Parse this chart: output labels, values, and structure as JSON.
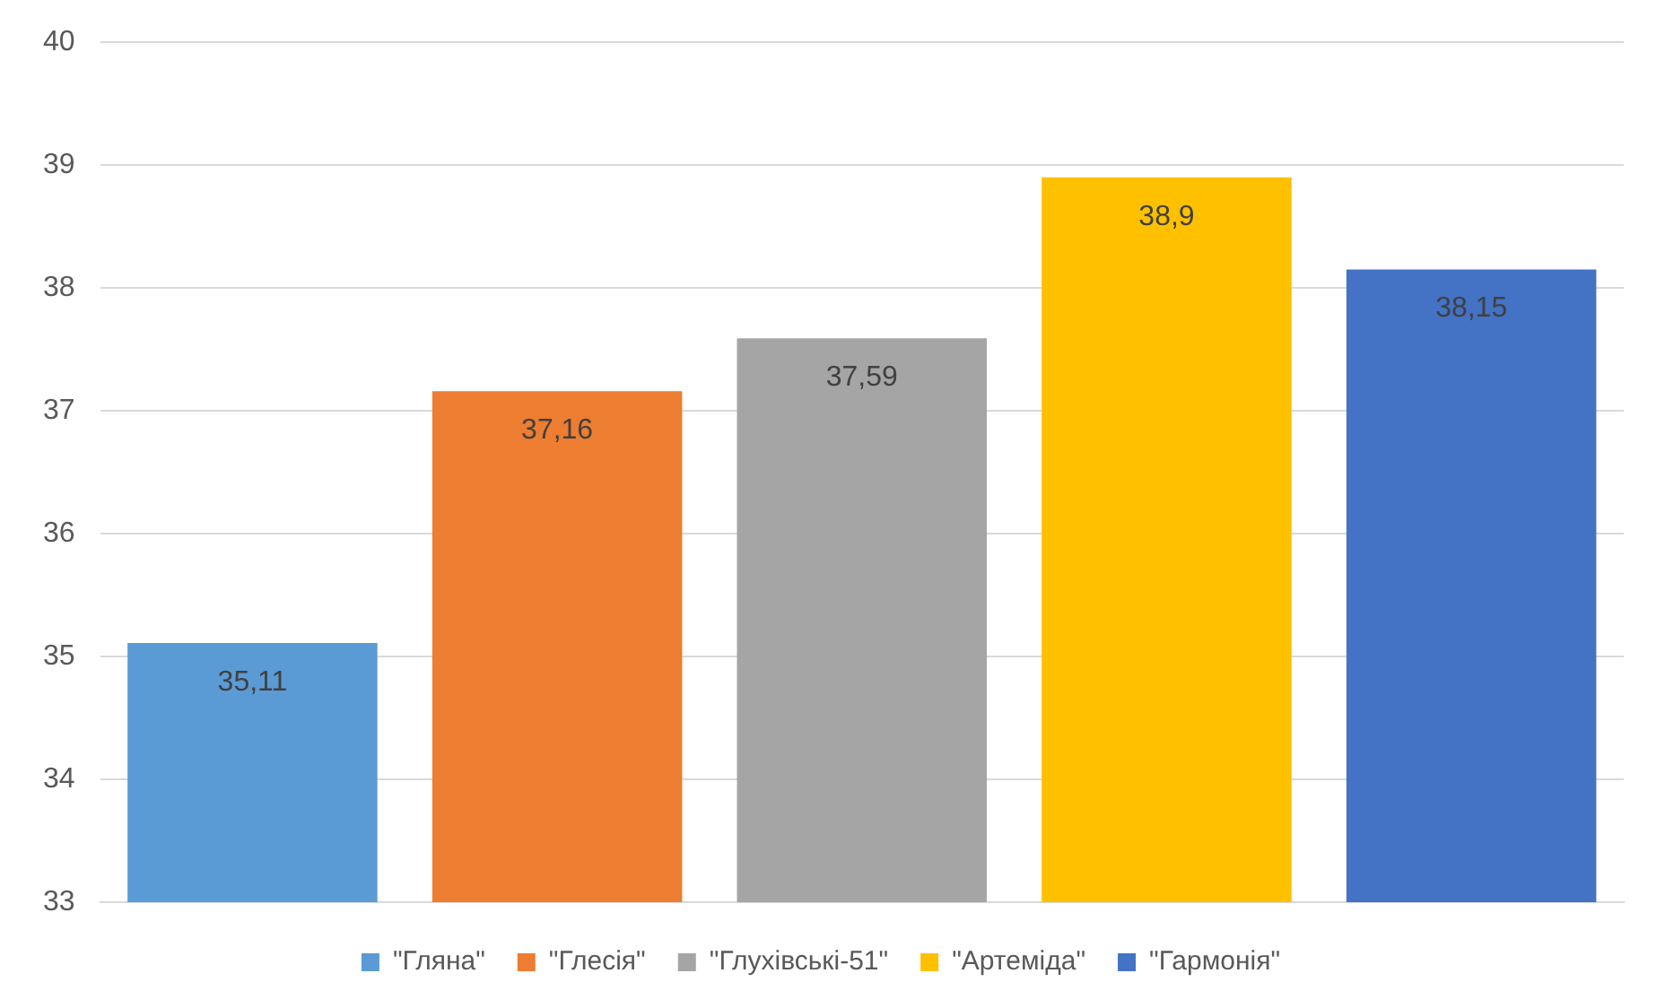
{
  "chart_data": {
    "type": "bar",
    "categories": [
      null,
      null,
      null,
      null,
      null
    ],
    "series": [
      {
        "name": "\"Гляна\"",
        "color": "#5b9bd5",
        "values": [
          35.11,
          null,
          null,
          null,
          null
        ],
        "value_labels": [
          "35,11",
          null,
          null,
          null,
          null
        ]
      },
      {
        "name": "\"Глесія\"",
        "color": "#ed7d31",
        "values": [
          null,
          37.16,
          null,
          null,
          null
        ],
        "value_labels": [
          null,
          "37,16",
          null,
          null,
          null
        ]
      },
      {
        "name": "\"Глухівські-51\"",
        "color": "#a5a5a5",
        "values": [
          null,
          null,
          37.59,
          null,
          null
        ],
        "value_labels": [
          null,
          null,
          "37,59",
          null,
          null
        ]
      },
      {
        "name": "\"Артеміда\"",
        "color": "#ffc000",
        "values": [
          null,
          null,
          null,
          38.9,
          null
        ],
        "value_labels": [
          null,
          null,
          null,
          "38,9",
          null
        ]
      },
      {
        "name": "\"Гармонія\"",
        "color": "#4472c4",
        "values": [
          null,
          null,
          null,
          null,
          38.15
        ],
        "value_labels": [
          null,
          null,
          null,
          null,
          "38,15"
        ]
      }
    ],
    "ylim": [
      33,
      40
    ],
    "yticks": [
      33,
      34,
      35,
      36,
      37,
      38,
      39,
      40
    ],
    "grid": "y",
    "legend": "bottom"
  }
}
